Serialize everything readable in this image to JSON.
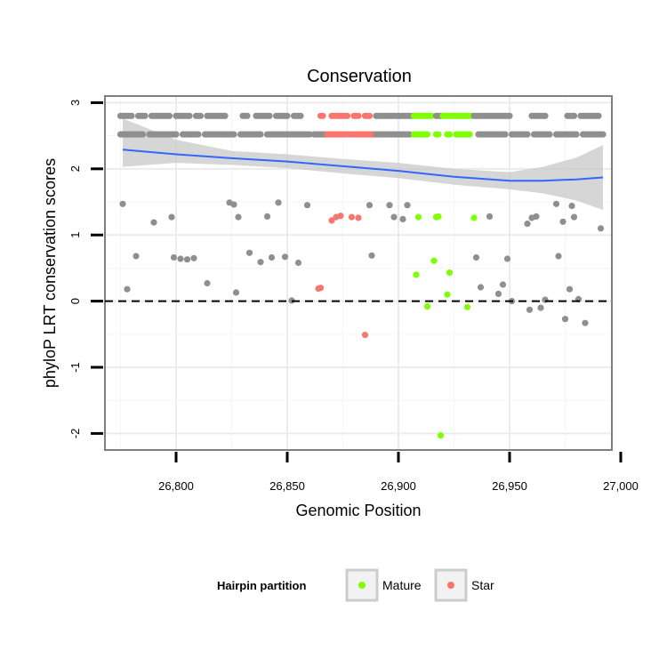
{
  "chart_data": {
    "type": "scatter",
    "title": "Conservation",
    "xlabel": "Genomic Position",
    "ylabel": "phyloP LRT conservation scores",
    "xlim": [
      26768,
      26996
    ],
    "ylim": [
      -2.25,
      3.1
    ],
    "x_ticks": [
      26800,
      26850,
      26900,
      26950,
      27000
    ],
    "x_tick_labels": [
      "26,800",
      "26,850",
      "26,900",
      "26,950",
      "27,000"
    ],
    "y_ticks": [
      -2,
      -1,
      0,
      1,
      2,
      3
    ],
    "y_tick_labels": [
      "-2",
      "-1",
      "0",
      "1",
      "2",
      "3"
    ],
    "grid": true,
    "reference_line": {
      "y": 0,
      "style": "dashed",
      "color": "#000000"
    },
    "colors": {
      "Other": "#8f8f8f",
      "Mature": "#7fff00",
      "Star": "#f8766d",
      "smooth": "#3366ff",
      "ribbon": "#c8c8c8"
    },
    "legend": {
      "title": "Hairpin partition",
      "position": "bottom",
      "entries": [
        {
          "label": "Mature",
          "color": "#7fff00"
        },
        {
          "label": "Star",
          "color": "#f8766d"
        }
      ]
    },
    "bands": [
      {
        "y": 2.8,
        "segments": [
          {
            "group": "Other",
            "from": 26775,
            "to": 26780
          },
          {
            "group": "Other",
            "from": 26783,
            "to": 26786
          },
          {
            "group": "Other",
            "from": 26789,
            "to": 26797
          },
          {
            "group": "Other",
            "from": 26800,
            "to": 26806
          },
          {
            "group": "Other",
            "from": 26809,
            "to": 26811
          },
          {
            "group": "Other",
            "from": 26814,
            "to": 26822
          },
          {
            "group": "Other",
            "from": 26830,
            "to": 26832
          },
          {
            "group": "Other",
            "from": 26836,
            "to": 26842
          },
          {
            "group": "Other",
            "from": 26845,
            "to": 26850
          },
          {
            "group": "Other",
            "from": 26853,
            "to": 26856
          },
          {
            "group": "Star",
            "from": 26865,
            "to": 26866
          },
          {
            "group": "Star",
            "from": 26870,
            "to": 26877
          },
          {
            "group": "Star",
            "from": 26880,
            "to": 26882
          },
          {
            "group": "Star",
            "from": 26885,
            "to": 26887
          },
          {
            "group": "Other",
            "from": 26890,
            "to": 26906
          },
          {
            "group": "Mature",
            "from": 26907,
            "to": 26915
          },
          {
            "group": "Other",
            "from": 26917,
            "to": 26919
          },
          {
            "group": "Mature",
            "from": 26920,
            "to": 26933
          },
          {
            "group": "Other",
            "from": 26934,
            "to": 26950
          },
          {
            "group": "Other",
            "from": 26960,
            "to": 26966
          },
          {
            "group": "Other",
            "from": 26976,
            "to": 26979
          },
          {
            "group": "Other",
            "from": 26982,
            "to": 26990
          }
        ]
      },
      {
        "y": 2.52,
        "segments": [
          {
            "group": "Other",
            "from": 26775,
            "to": 26785
          },
          {
            "group": "Other",
            "from": 26788,
            "to": 26800
          },
          {
            "group": "Other",
            "from": 26803,
            "to": 26810
          },
          {
            "group": "Other",
            "from": 26813,
            "to": 26826
          },
          {
            "group": "Other",
            "from": 26829,
            "to": 26838
          },
          {
            "group": "Other",
            "from": 26841,
            "to": 26860
          },
          {
            "group": "Other",
            "from": 26862,
            "to": 26867
          },
          {
            "group": "Star",
            "from": 26868,
            "to": 26889
          },
          {
            "group": "Other",
            "from": 26890,
            "to": 26905
          },
          {
            "group": "Mature",
            "from": 26907,
            "to": 26913
          },
          {
            "group": "Mature",
            "from": 26917,
            "to": 26918
          },
          {
            "group": "Mature",
            "from": 26922,
            "to": 26923
          },
          {
            "group": "Mature",
            "from": 26926,
            "to": 26932
          },
          {
            "group": "Other",
            "from": 26936,
            "to": 26948
          },
          {
            "group": "Other",
            "from": 26951,
            "to": 26958
          },
          {
            "group": "Other",
            "from": 26961,
            "to": 26968
          },
          {
            "group": "Other",
            "from": 26971,
            "to": 26980
          },
          {
            "group": "Other",
            "from": 26983,
            "to": 26992
          }
        ]
      }
    ],
    "points": [
      {
        "x": 26776,
        "y": 1.47,
        "group": "Other"
      },
      {
        "x": 26778,
        "y": 0.18,
        "group": "Other"
      },
      {
        "x": 26782,
        "y": 0.68,
        "group": "Other"
      },
      {
        "x": 26790,
        "y": 1.19,
        "group": "Other"
      },
      {
        "x": 26798,
        "y": 1.27,
        "group": "Other"
      },
      {
        "x": 26799,
        "y": 0.66,
        "group": "Other"
      },
      {
        "x": 26802,
        "y": 0.64,
        "group": "Other"
      },
      {
        "x": 26805,
        "y": 0.63,
        "group": "Other"
      },
      {
        "x": 26808,
        "y": 0.65,
        "group": "Other"
      },
      {
        "x": 26814,
        "y": 0.27,
        "group": "Other"
      },
      {
        "x": 26824,
        "y": 1.49,
        "group": "Other"
      },
      {
        "x": 26826,
        "y": 1.46,
        "group": "Other"
      },
      {
        "x": 26827,
        "y": 0.13,
        "group": "Other"
      },
      {
        "x": 26828,
        "y": 1.27,
        "group": "Other"
      },
      {
        "x": 26833,
        "y": 0.73,
        "group": "Other"
      },
      {
        "x": 26838,
        "y": 0.59,
        "group": "Other"
      },
      {
        "x": 26841,
        "y": 1.28,
        "group": "Other"
      },
      {
        "x": 26843,
        "y": 0.66,
        "group": "Other"
      },
      {
        "x": 26846,
        "y": 1.49,
        "group": "Other"
      },
      {
        "x": 26849,
        "y": 0.67,
        "group": "Other"
      },
      {
        "x": 26852,
        "y": 0.01,
        "group": "Other"
      },
      {
        "x": 26855,
        "y": 0.58,
        "group": "Other"
      },
      {
        "x": 26859,
        "y": 1.45,
        "group": "Other"
      },
      {
        "x": 26864,
        "y": 0.19,
        "group": "Star"
      },
      {
        "x": 26865,
        "y": 0.2,
        "group": "Star"
      },
      {
        "x": 26870,
        "y": 1.22,
        "group": "Star"
      },
      {
        "x": 26872,
        "y": 1.27,
        "group": "Star"
      },
      {
        "x": 26874,
        "y": 1.29,
        "group": "Star"
      },
      {
        "x": 26879,
        "y": 1.27,
        "group": "Star"
      },
      {
        "x": 26882,
        "y": 1.26,
        "group": "Star"
      },
      {
        "x": 26885,
        "y": -0.51,
        "group": "Star"
      },
      {
        "x": 26887,
        "y": 1.45,
        "group": "Other"
      },
      {
        "x": 26888,
        "y": 0.69,
        "group": "Other"
      },
      {
        "x": 26896,
        "y": 1.45,
        "group": "Other"
      },
      {
        "x": 26898,
        "y": 1.27,
        "group": "Other"
      },
      {
        "x": 26902,
        "y": 1.24,
        "group": "Other"
      },
      {
        "x": 26904,
        "y": 1.45,
        "group": "Other"
      },
      {
        "x": 26908,
        "y": 0.4,
        "group": "Mature"
      },
      {
        "x": 26909,
        "y": 1.27,
        "group": "Mature"
      },
      {
        "x": 26913,
        "y": -0.08,
        "group": "Mature"
      },
      {
        "x": 26916,
        "y": 0.61,
        "group": "Mature"
      },
      {
        "x": 26917,
        "y": 1.27,
        "group": "Mature"
      },
      {
        "x": 26918,
        "y": 1.28,
        "group": "Mature"
      },
      {
        "x": 26919,
        "y": -2.03,
        "group": "Mature"
      },
      {
        "x": 26922,
        "y": 0.1,
        "group": "Mature"
      },
      {
        "x": 26923,
        "y": 0.43,
        "group": "Mature"
      },
      {
        "x": 26931,
        "y": -0.09,
        "group": "Mature"
      },
      {
        "x": 26934,
        "y": 1.26,
        "group": "Mature"
      },
      {
        "x": 26935,
        "y": 0.66,
        "group": "Other"
      },
      {
        "x": 26937,
        "y": 0.21,
        "group": "Other"
      },
      {
        "x": 26941,
        "y": 1.28,
        "group": "Other"
      },
      {
        "x": 26945,
        "y": 0.11,
        "group": "Other"
      },
      {
        "x": 26947,
        "y": 0.25,
        "group": "Other"
      },
      {
        "x": 26949,
        "y": 0.64,
        "group": "Other"
      },
      {
        "x": 26951,
        "y": 0.0,
        "group": "Other"
      },
      {
        "x": 26958,
        "y": 1.17,
        "group": "Other"
      },
      {
        "x": 26959,
        "y": -0.13,
        "group": "Other"
      },
      {
        "x": 26960,
        "y": 1.26,
        "group": "Other"
      },
      {
        "x": 26962,
        "y": 1.28,
        "group": "Other"
      },
      {
        "x": 26964,
        "y": -0.1,
        "group": "Other"
      },
      {
        "x": 26966,
        "y": 0.02,
        "group": "Other"
      },
      {
        "x": 26971,
        "y": 1.47,
        "group": "Other"
      },
      {
        "x": 26972,
        "y": 0.68,
        "group": "Other"
      },
      {
        "x": 26974,
        "y": 1.2,
        "group": "Other"
      },
      {
        "x": 26975,
        "y": -0.27,
        "group": "Other"
      },
      {
        "x": 26977,
        "y": 0.18,
        "group": "Other"
      },
      {
        "x": 26978,
        "y": 1.44,
        "group": "Other"
      },
      {
        "x": 26979,
        "y": 1.27,
        "group": "Other"
      },
      {
        "x": 26981,
        "y": 0.03,
        "group": "Other"
      },
      {
        "x": 26984,
        "y": -0.33,
        "group": "Other"
      },
      {
        "x": 26991,
        "y": 1.1,
        "group": "Other"
      }
    ],
    "smooth": {
      "x": [
        26776,
        26800,
        26825,
        26850,
        26875,
        26900,
        26925,
        26950,
        26965,
        26980,
        26992
      ],
      "y": [
        2.29,
        2.22,
        2.16,
        2.11,
        2.04,
        1.97,
        1.88,
        1.82,
        1.82,
        1.84,
        1.87
      ],
      "lower": [
        2.03,
        2.09,
        2.06,
        2.01,
        1.93,
        1.86,
        1.76,
        1.69,
        1.63,
        1.52,
        1.38
      ],
      "upper": [
        2.76,
        2.44,
        2.27,
        2.22,
        2.15,
        2.09,
        2.0,
        1.95,
        2.03,
        2.17,
        2.36
      ]
    }
  }
}
